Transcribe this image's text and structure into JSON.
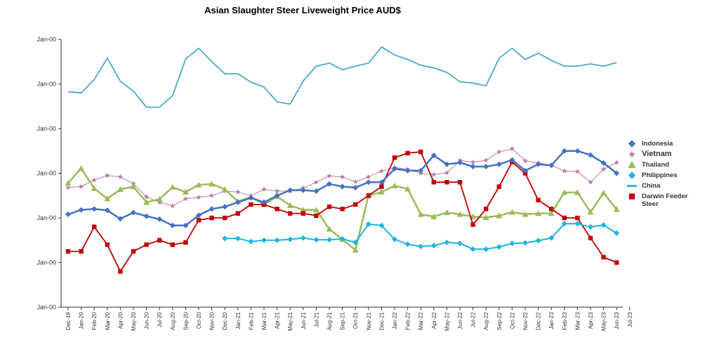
{
  "chart_data": {
    "type": "line",
    "title": "Asian Slaughter Steer Liveweight Price AUD$",
    "xlabel": "",
    "ylabel": "",
    "ylim": [
      0,
      6
    ],
    "y_tick_labels": [
      "Jan-00",
      "Jan-00",
      "Jan-00",
      "Jan-00",
      "Jan-00",
      "Jan-00",
      "Jan-00"
    ],
    "categories": [
      "Dec-19",
      "Jan-20",
      "Feb-20",
      "Mar-20",
      "Apr-20",
      "May-20",
      "Jun-20",
      "Jul-20",
      "Aug-20",
      "Sep-20",
      "Oct-20",
      "Nov-20",
      "Dec-20",
      "Jan-21",
      "Feb-21",
      "Mar-21",
      "Apr-21",
      "May-21",
      "Jun-21",
      "Jul-21",
      "Aug-21",
      "Sep-21",
      "Oct-21",
      "Nov-21",
      "Dec-21",
      "Jan-22",
      "Feb-22",
      "Mar-22",
      "Apr-22",
      "May-22",
      "Jun-22",
      "Jul-22",
      "Aug-22",
      "Sep-22",
      "Oct-22",
      "Nov-22",
      "Dec-22",
      "Jan-23",
      "Feb-23",
      "Mar-23",
      "Apr-23",
      "May-23",
      "Jun-23",
      "Jul-23"
    ],
    "grid": false,
    "legend_position": "right",
    "series": [
      {
        "name": "Indonesia",
        "color": "#4472c4",
        "marker": "diamond",
        "width": 2.5,
        "values": [
          2.08,
          2.18,
          2.2,
          2.17,
          1.98,
          2.12,
          2.04,
          1.97,
          1.83,
          1.83,
          2.06,
          2.2,
          2.25,
          2.35,
          2.45,
          2.35,
          2.5,
          2.62,
          2.62,
          2.6,
          2.76,
          2.7,
          2.68,
          2.8,
          2.8,
          3.1,
          3.06,
          3.06,
          3.4,
          3.2,
          3.24,
          3.15,
          3.15,
          3.2,
          3.3,
          3.06,
          3.2,
          3.18,
          3.5,
          3.5,
          3.41,
          3.23,
          3.0,
          null
        ]
      },
      {
        "name": "Vietnam",
        "color": "#b67ba8",
        "marker": "star",
        "width": 1,
        "values": [
          2.68,
          2.7,
          2.85,
          2.95,
          2.92,
          2.77,
          2.47,
          2.35,
          2.27,
          2.43,
          2.46,
          2.5,
          2.6,
          2.58,
          2.5,
          2.64,
          2.6,
          2.6,
          2.67,
          2.8,
          2.94,
          2.92,
          2.81,
          2.92,
          3.05,
          3.13,
          3.09,
          3.0,
          2.97,
          3.01,
          3.29,
          3.25,
          3.29,
          3.48,
          3.55,
          3.28,
          3.23,
          3.18,
          3.05,
          3.04,
          2.8,
          3.09,
          3.24,
          null
        ]
      },
      {
        "name": "Thailand",
        "color": "#9bbb59",
        "marker": "triangle",
        "width": 2.5,
        "values": [
          2.78,
          3.11,
          2.66,
          2.43,
          2.64,
          2.7,
          2.35,
          2.42,
          2.69,
          2.58,
          2.74,
          2.76,
          2.64,
          2.37,
          2.47,
          2.3,
          2.48,
          2.28,
          2.18,
          2.18,
          1.75,
          1.52,
          1.28,
          2.5,
          2.58,
          2.72,
          2.65,
          2.08,
          2.03,
          2.12,
          2.08,
          2.03,
          2.01,
          2.05,
          2.13,
          2.08,
          2.1,
          2.1,
          2.57,
          2.57,
          2.13,
          2.56,
          2.19,
          null
        ]
      },
      {
        "name": "Philippines",
        "color": "#1fb4e0",
        "marker": "diamond",
        "width": 2,
        "values": [
          null,
          null,
          null,
          null,
          null,
          null,
          null,
          null,
          null,
          null,
          null,
          null,
          1.54,
          1.54,
          1.47,
          1.5,
          1.5,
          1.52,
          1.55,
          1.51,
          1.51,
          1.53,
          1.45,
          1.86,
          1.83,
          1.52,
          1.41,
          1.36,
          1.38,
          1.45,
          1.43,
          1.3,
          1.3,
          1.35,
          1.43,
          1.44,
          1.49,
          1.55,
          1.87,
          1.87,
          1.8,
          1.84,
          1.66,
          null
        ]
      },
      {
        "name": "China",
        "color": "#4bacc6",
        "marker": "none",
        "width": 1.8,
        "values": [
          4.83,
          4.8,
          5.1,
          5.58,
          5.06,
          4.84,
          4.48,
          4.48,
          4.74,
          5.56,
          5.8,
          5.5,
          5.23,
          5.23,
          5.04,
          4.93,
          4.6,
          4.55,
          5.07,
          5.4,
          5.47,
          5.32,
          5.4,
          5.47,
          5.83,
          5.65,
          5.55,
          5.42,
          5.36,
          5.26,
          5.05,
          5.02,
          4.96,
          5.58,
          5.8,
          5.55,
          5.69,
          5.53,
          5.4,
          5.4,
          5.45,
          5.4,
          5.48,
          null
        ]
      },
      {
        "name": "Darwin Feeder\nSteer",
        "color": "#c00000",
        "marker": "square",
        "width": 1.8,
        "values": [
          1.25,
          1.25,
          1.8,
          1.4,
          0.8,
          1.25,
          1.4,
          1.5,
          1.4,
          1.45,
          1.95,
          2.0,
          2.0,
          2.1,
          2.3,
          2.3,
          2.2,
          2.1,
          2.1,
          2.05,
          2.25,
          2.2,
          2.3,
          2.5,
          2.7,
          3.35,
          3.45,
          3.48,
          2.8,
          2.8,
          2.8,
          1.85,
          2.2,
          2.7,
          3.25,
          3.0,
          2.4,
          2.2,
          2.0,
          2.0,
          1.55,
          1.12,
          1.0,
          null
        ]
      }
    ]
  }
}
